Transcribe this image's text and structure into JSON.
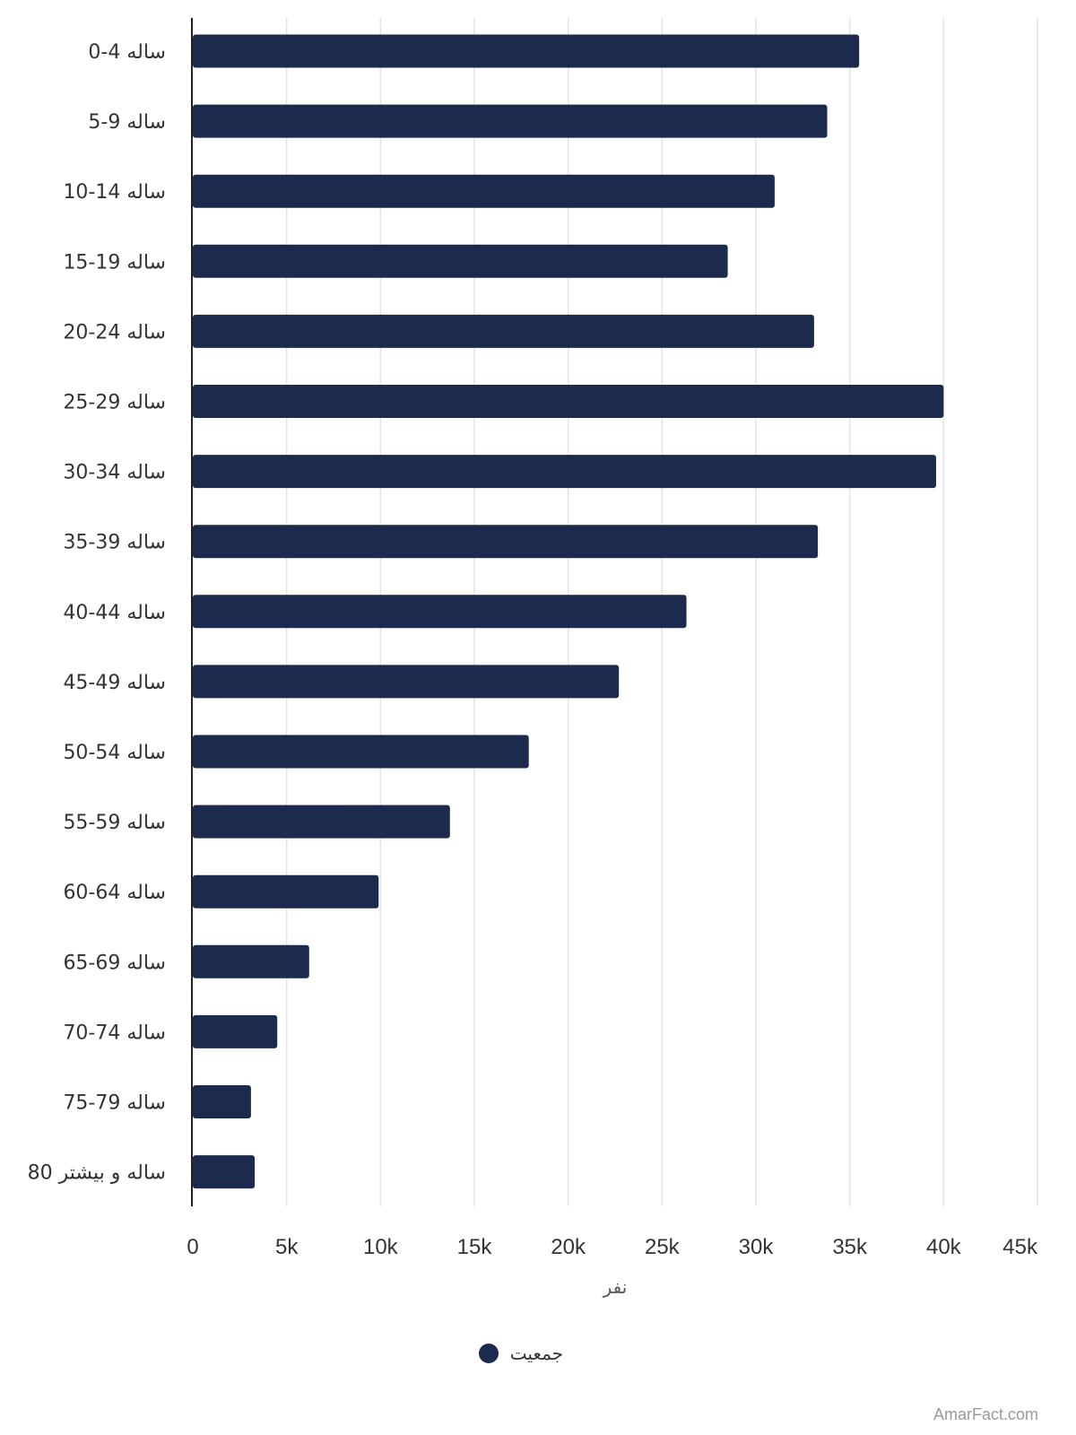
{
  "chart_data": {
    "type": "bar",
    "orientation": "horizontal",
    "categories": [
      "0-4 ساله",
      "5-9 ساله",
      "10-14 ساله",
      "15-19 ساله",
      "20-24 ساله",
      "25-29 ساله",
      "30-34 ساله",
      "35-39 ساله",
      "40-44 ساله",
      "45-49 ساله",
      "50-54 ساله",
      "55-59 ساله",
      "60-64 ساله",
      "65-69 ساله",
      "70-74 ساله",
      "75-79 ساله",
      "80 ساله و بیشتر"
    ],
    "series": [
      {
        "name": "جمعیت",
        "color": "#1c2a4d",
        "values": [
          35500,
          33800,
          31000,
          28500,
          33100,
          40000,
          39600,
          33300,
          26300,
          22700,
          17900,
          13700,
          9900,
          6200,
          4500,
          3100,
          3300
        ]
      }
    ],
    "xlabel": "نفر",
    "ylabel": "",
    "xlim": [
      0,
      45000
    ],
    "x_ticks": [
      0,
      5000,
      10000,
      15000,
      20000,
      25000,
      30000,
      35000,
      40000,
      45000
    ],
    "x_tick_labels": [
      "0",
      "5k",
      "10k",
      "15k",
      "20k",
      "25k",
      "30k",
      "35k",
      "40k",
      "45k"
    ],
    "grid": "vertical",
    "legend": "bottom-center"
  },
  "watermark": "AmarFact.com"
}
